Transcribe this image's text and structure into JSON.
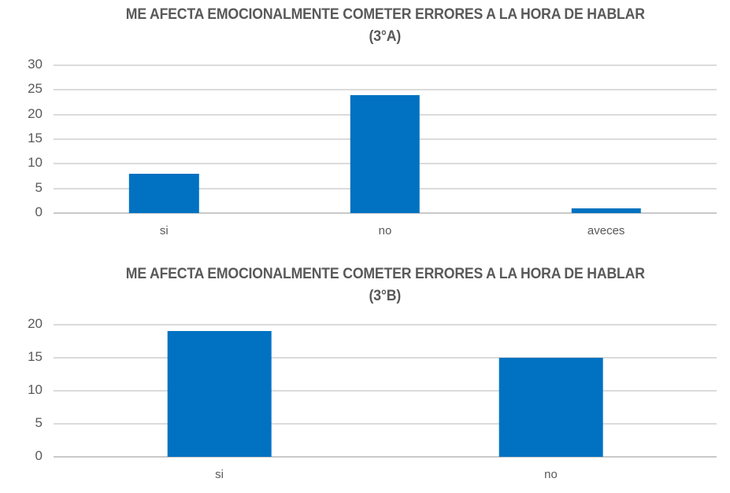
{
  "page": {
    "background": "#FFFFFF"
  },
  "styles": {
    "bar_color": "#0072C1",
    "title_color": "#595959",
    "axis_label_color": "#595959",
    "gridline_color": "#DBDBDB",
    "axis_line_color": "#C9C9C9"
  },
  "chart_data": [
    {
      "type": "bar",
      "title": "ME AFECTA EMOCIONALMENTE COMETER ERRORES A LA HORA DE HABLAR",
      "subtitle": "(3°A)",
      "categories": [
        "si",
        "no",
        "aveces"
      ],
      "values": [
        8,
        24,
        1
      ],
      "xlabel": "",
      "ylabel": "",
      "ylim": [
        0,
        30
      ],
      "yticks": [
        0,
        5,
        10,
        15,
        20,
        25,
        30
      ],
      "bar_color": "#0072C1",
      "grid": true,
      "legend": "none"
    },
    {
      "type": "bar",
      "title": "ME AFECTA EMOCIONALMENTE COMETER ERRORES A LA HORA DE HABLAR",
      "subtitle": "(3°B)",
      "categories": [
        "si",
        "no"
      ],
      "values": [
        19,
        15
      ],
      "xlabel": "",
      "ylabel": "",
      "ylim": [
        0,
        20
      ],
      "yticks": [
        0,
        5,
        10,
        15,
        20
      ],
      "bar_color": "#0072C1",
      "grid": true,
      "legend": "none"
    }
  ]
}
